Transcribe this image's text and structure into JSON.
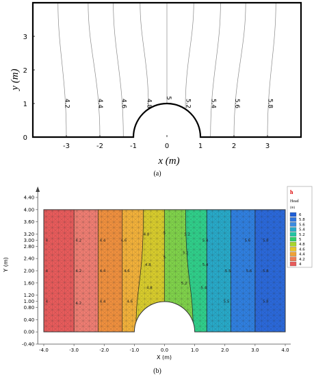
{
  "chart_data": [
    {
      "type": "line",
      "panel_label": "(a)",
      "xlabel": "x (m)",
      "ylabel": "y (m)",
      "xlim": [
        -4,
        4
      ],
      "ylim": [
        0,
        4
      ],
      "x_ticks": [
        "-3",
        "-2",
        "-1",
        "0",
        "1",
        "2",
        "3"
      ],
      "y_ticks": [
        "0",
        "1",
        "2",
        "3"
      ],
      "obstacle": "semicircle of radius 1 centered at origin",
      "contour_levels": [
        {
          "label": "4.2",
          "x_bottom": -3.0,
          "x_top": -3.25
        },
        {
          "label": "4.4",
          "x_bottom": -2.0,
          "x_top": -2.35
        },
        {
          "label": "4.6",
          "x_bottom": -1.3,
          "x_top": -1.6
        },
        {
          "label": "4.8",
          "x_bottom": -0.55,
          "x_top": -0.8
        },
        {
          "label": "5",
          "x_bottom": 0.0,
          "x_top": 0.0
        },
        {
          "label": "5.2",
          "x_bottom": 0.55,
          "x_top": 0.8
        },
        {
          "label": "5.4",
          "x_bottom": 1.3,
          "x_top": 1.6
        },
        {
          "label": "5.6",
          "x_bottom": 2.0,
          "x_top": 2.35
        },
        {
          "label": "5.8",
          "x_bottom": 3.0,
          "x_top": 3.25
        }
      ]
    },
    {
      "type": "heatmap",
      "panel_label": "(b)",
      "xlabel": "X (m)",
      "ylabel": "Y (m)",
      "xlim": [
        -4,
        4
      ],
      "ylim": [
        -0.4,
        4.4
      ],
      "x_ticks": [
        "-4.0",
        "-3.0",
        "-2.0",
        "-1.0",
        "0.0",
        "1.0",
        "2.0",
        "3.0",
        "4.0"
      ],
      "y_ticks": [
        "-0.40",
        "0.00",
        "0.40",
        "0.80",
        "1.00",
        "1.20",
        "1.60",
        "2.00",
        "2.40",
        "2.80",
        "3.00",
        "3.20",
        "3.60",
        "4.00",
        "4.40"
      ],
      "legend": {
        "corner_label": "h",
        "title": "Head",
        "unit": "(m)",
        "levels": [
          {
            "label": "6",
            "color": "#1f5fd6"
          },
          {
            "label": "5.8",
            "color": "#2f74dc"
          },
          {
            "label": "5.6",
            "color": "#3b8be0"
          },
          {
            "label": "5.4",
            "color": "#27a9c8"
          },
          {
            "label": "5.2",
            "color": "#22c4a4"
          },
          {
            "label": "5",
            "color": "#2fcf6a"
          },
          {
            "label": "4.8",
            "color": "#a8d62c"
          },
          {
            "label": "4.6",
            "color": "#e8c52a"
          },
          {
            "label": "4.4",
            "color": "#f0a236"
          },
          {
            "label": "4.2",
            "color": "#ef7d55"
          },
          {
            "label": "4",
            "color": "#e85b5b"
          }
        ]
      },
      "bands": [
        {
          "from": -4.0,
          "to": -3.0,
          "color": "#e85b5b"
        },
        {
          "from": -3.0,
          "to": -2.2,
          "color": "#ef7d72"
        },
        {
          "from": -2.2,
          "to": -1.4,
          "color": "#f0903e"
        },
        {
          "from": -1.4,
          "to": -0.7,
          "color": "#f2b13a"
        },
        {
          "from": -0.7,
          "to": 0.0,
          "color": "#d8cc2c"
        },
        {
          "from": 0.0,
          "to": 0.7,
          "color": "#7fd24a"
        },
        {
          "from": 0.7,
          "to": 1.4,
          "color": "#2fcf8a"
        },
        {
          "from": 1.4,
          "to": 2.2,
          "color": "#27a9c8"
        },
        {
          "from": 2.2,
          "to": 3.0,
          "color": "#2f7fe0"
        },
        {
          "from": 3.0,
          "to": 4.0,
          "color": "#2a68da"
        }
      ],
      "contour_labels": [
        {
          "label": "4",
          "x": -3.9,
          "y": 3.0
        },
        {
          "label": "4",
          "x": -3.9,
          "y": 2.0
        },
        {
          "label": "4",
          "x": -3.9,
          "y": 1.0
        },
        {
          "label": "4.2",
          "x": -2.85,
          "y": 3.0
        },
        {
          "label": "4.2",
          "x": -2.85,
          "y": 2.0
        },
        {
          "label": "4.2",
          "x": -2.85,
          "y": 0.95
        },
        {
          "label": "4.4",
          "x": -2.05,
          "y": 3.0
        },
        {
          "label": "4.4",
          "x": -2.05,
          "y": 2.0
        },
        {
          "label": "4.4",
          "x": -2.05,
          "y": 1.0
        },
        {
          "label": "4.6",
          "x": -1.35,
          "y": 3.0
        },
        {
          "label": "4.6",
          "x": -1.25,
          "y": 2.0
        },
        {
          "label": "4.6",
          "x": -1.15,
          "y": 1.0
        },
        {
          "label": "4.8",
          "x": -0.6,
          "y": 3.2
        },
        {
          "label": "4.8",
          "x": -0.55,
          "y": 2.2
        },
        {
          "label": "4.8",
          "x": -0.5,
          "y": 1.45
        },
        {
          "label": "5",
          "x": 0.0,
          "y": 3.25
        },
        {
          "label": "5",
          "x": 0.0,
          "y": 2.45
        },
        {
          "label": "5.2",
          "x": 0.75,
          "y": 3.2
        },
        {
          "label": "5.2",
          "x": 0.7,
          "y": 2.6
        },
        {
          "label": "5.2",
          "x": 0.65,
          "y": 1.6
        },
        {
          "label": "5.4",
          "x": 1.35,
          "y": 3.0
        },
        {
          "label": "5.4",
          "x": 1.35,
          "y": 2.2
        },
        {
          "label": "5.4",
          "x": 1.3,
          "y": 1.45
        },
        {
          "label": "5.5",
          "x": 2.1,
          "y": 2.0
        },
        {
          "label": "5.5",
          "x": 2.05,
          "y": 1.0
        },
        {
          "label": "5.6",
          "x": 2.75,
          "y": 3.0
        },
        {
          "label": "5.6",
          "x": 2.8,
          "y": 2.0
        },
        {
          "label": "5.8",
          "x": 3.35,
          "y": 3.0
        },
        {
          "label": "5.8",
          "x": 3.35,
          "y": 2.0
        },
        {
          "label": "5.8",
          "x": 3.35,
          "y": 1.0
        }
      ]
    }
  ]
}
